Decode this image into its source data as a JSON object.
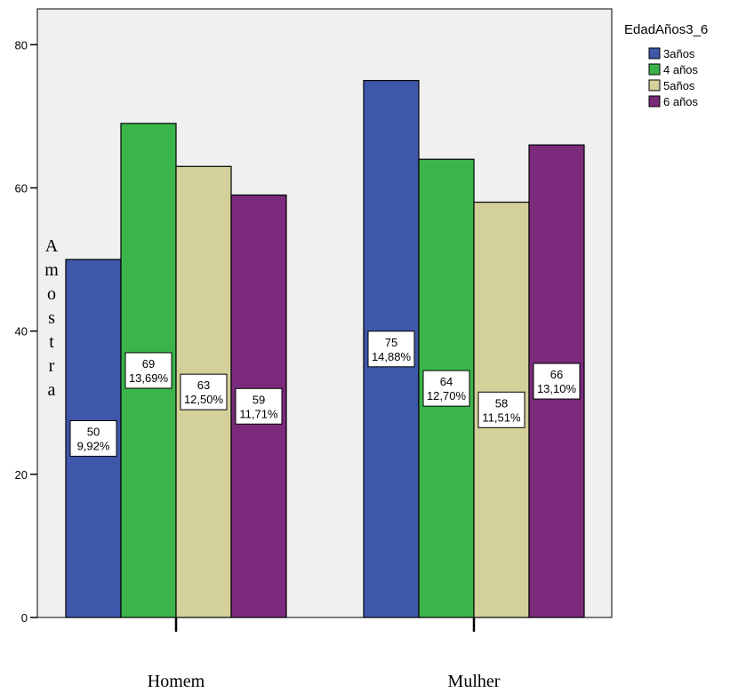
{
  "chart_data": {
    "type": "bar",
    "categories": [
      "Homem",
      "Mulher"
    ],
    "ylabel": "Amostra",
    "ylim": [
      0,
      85
    ],
    "yticks": [
      0,
      20,
      40,
      60,
      80
    ],
    "legend": {
      "title": "EdadAños3_6",
      "placement": "right"
    },
    "series": [
      {
        "name": "3años",
        "color": "#3f57aa",
        "values": [
          50,
          75
        ],
        "percent_labels": [
          "9,92%",
          "14,88%"
        ]
      },
      {
        "name": "4 años",
        "color": "#3bb54a",
        "values": [
          69,
          64
        ],
        "percent_labels": [
          "13,69%",
          "12,70%"
        ]
      },
      {
        "name": "5años",
        "color": "#d4d09a",
        "values": [
          63,
          58
        ],
        "percent_labels": [
          "12,50%",
          "11,51%"
        ]
      },
      {
        "name": "6 años",
        "color": "#7b2a7c",
        "values": [
          59,
          66
        ],
        "percent_labels": [
          "11,71%",
          "13,10%"
        ]
      }
    ],
    "plot_background": "#f0f0f0",
    "grid": false
  }
}
